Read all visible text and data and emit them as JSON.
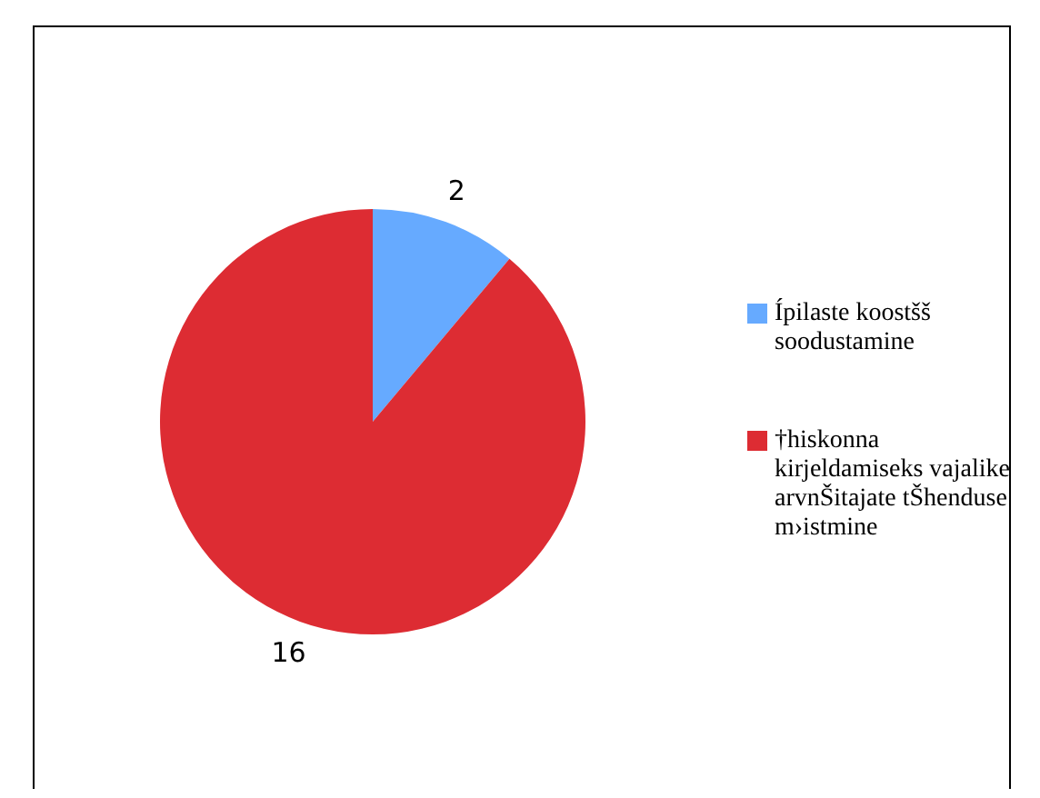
{
  "chart_data": {
    "type": "pie",
    "categories": [
      "Ípilaste koostšš soodustamine",
      "†hiskonna kirjeldamiseks vajalike arvnŠitajate tŠhenduse m›istmine"
    ],
    "values": [
      2,
      16
    ],
    "colors": [
      "#66aaff",
      "#dd2c33"
    ],
    "data_labels": true,
    "legend": "right"
  }
}
